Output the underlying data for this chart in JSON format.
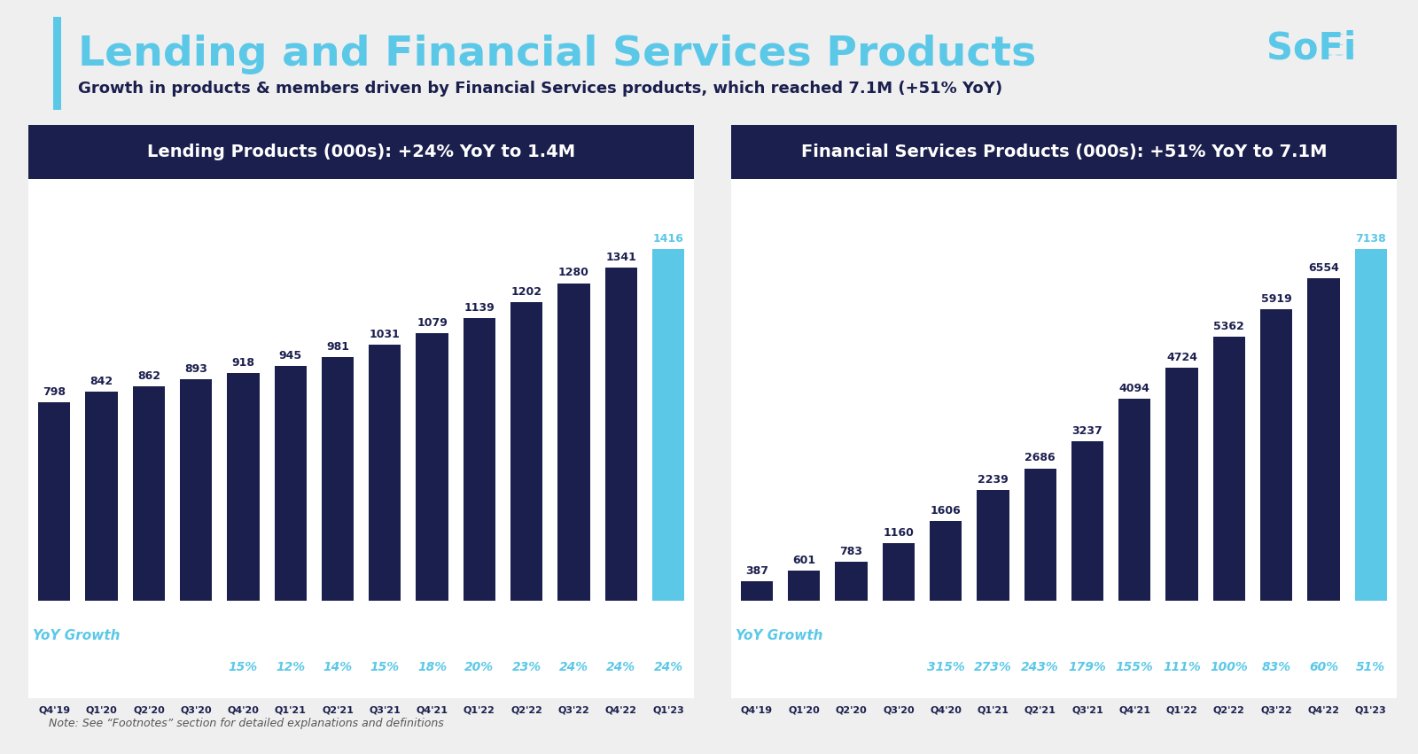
{
  "title": "Lending and Financial Services Products",
  "subtitle": "Growth in products & members driven by Financial Services products, which reached 7.1M (+51% YoY)",
  "note": "Note: See “Footnotes” section for detailed explanations and definitions",
  "lending_title": "Lending Products (000s): +24% YoY to 1.4M",
  "financial_title": "Financial Services Products (000s): +51% YoY to 7.1M",
  "lending_categories": [
    "Q4'19",
    "Q1'20",
    "Q2'20",
    "Q3'20",
    "Q4'20",
    "Q1'21",
    "Q2'21",
    "Q3'21",
    "Q4'21",
    "Q1'22",
    "Q2'22",
    "Q3'22",
    "Q4'22",
    "Q1'23"
  ],
  "lending_values": [
    798,
    842,
    862,
    893,
    918,
    945,
    981,
    1031,
    1079,
    1139,
    1202,
    1280,
    1341,
    1416
  ],
  "lending_yoy": [
    "15%",
    "12%",
    "14%",
    "15%",
    "18%",
    "20%",
    "23%",
    "24%",
    "24%",
    "24%"
  ],
  "financial_categories": [
    "Q4'19",
    "Q1'20",
    "Q2'20",
    "Q3'20",
    "Q4'20",
    "Q1'21",
    "Q2'21",
    "Q3'21",
    "Q4'21",
    "Q1'22",
    "Q2'22",
    "Q3'22",
    "Q4'22",
    "Q1'23"
  ],
  "financial_values": [
    387,
    601,
    783,
    1160,
    1606,
    2239,
    2686,
    3237,
    4094,
    4724,
    5362,
    5919,
    6554,
    7138
  ],
  "financial_yoy": [
    "315%",
    "273%",
    "243%",
    "179%",
    "155%",
    "111%",
    "100%",
    "83%",
    "60%",
    "51%"
  ],
  "dark_bar_color": "#1b1f4e",
  "light_bar_color": "#5bc8e8",
  "panel_bg_color": "#1b1f4e",
  "panel_text_color": "#ffffff",
  "title_color": "#5bc8e8",
  "subtitle_color": "#1b1f4e",
  "yoy_label_color": "#5bc8e8",
  "bar_label_color_dark": "#1b1f4e",
  "bar_label_color_light": "#5bc8e8",
  "bg_color": "#efefef",
  "accent_color": "#5bc8e8",
  "title_fontsize": 34,
  "subtitle_fontsize": 13,
  "panel_title_fontsize": 14,
  "bar_label_fontsize": 9,
  "tick_fontsize": 8,
  "yoy_fontsize": 11,
  "note_fontsize": 9
}
